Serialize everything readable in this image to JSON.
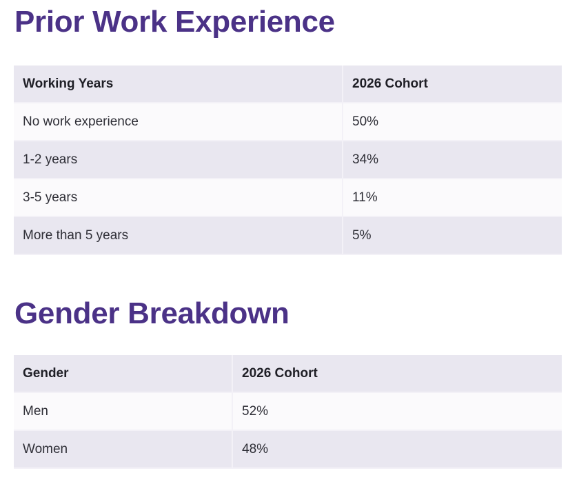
{
  "page": {
    "background_color": "#ffffff",
    "heading_color": "#4b3287",
    "table_header_bg": "#e9e7f0",
    "row_bg_light": "#fbfafc",
    "row_bg_lavender": "#e9e7f0",
    "divider_color": "#f3f1f7",
    "body_text_color": "#2e2e36",
    "header_text_color": "#1f1f26"
  },
  "sections": [
    {
      "title": "Prior Work Experience",
      "table": {
        "columns": [
          "Working Years",
          "2026 Cohort"
        ],
        "rows": [
          {
            "label": "No work experience",
            "value": "50%"
          },
          {
            "label": "1-2 years",
            "value": "34%"
          },
          {
            "label": "3-5 years",
            "value": "11%"
          },
          {
            "label": "More than 5 years",
            "value": "5%"
          }
        ]
      }
    },
    {
      "title": "Gender Breakdown",
      "table": {
        "columns": [
          "Gender",
          "2026 Cohort"
        ],
        "rows": [
          {
            "label": "Men",
            "value": "52%"
          },
          {
            "label": "Women",
            "value": "48%"
          }
        ]
      }
    }
  ]
}
